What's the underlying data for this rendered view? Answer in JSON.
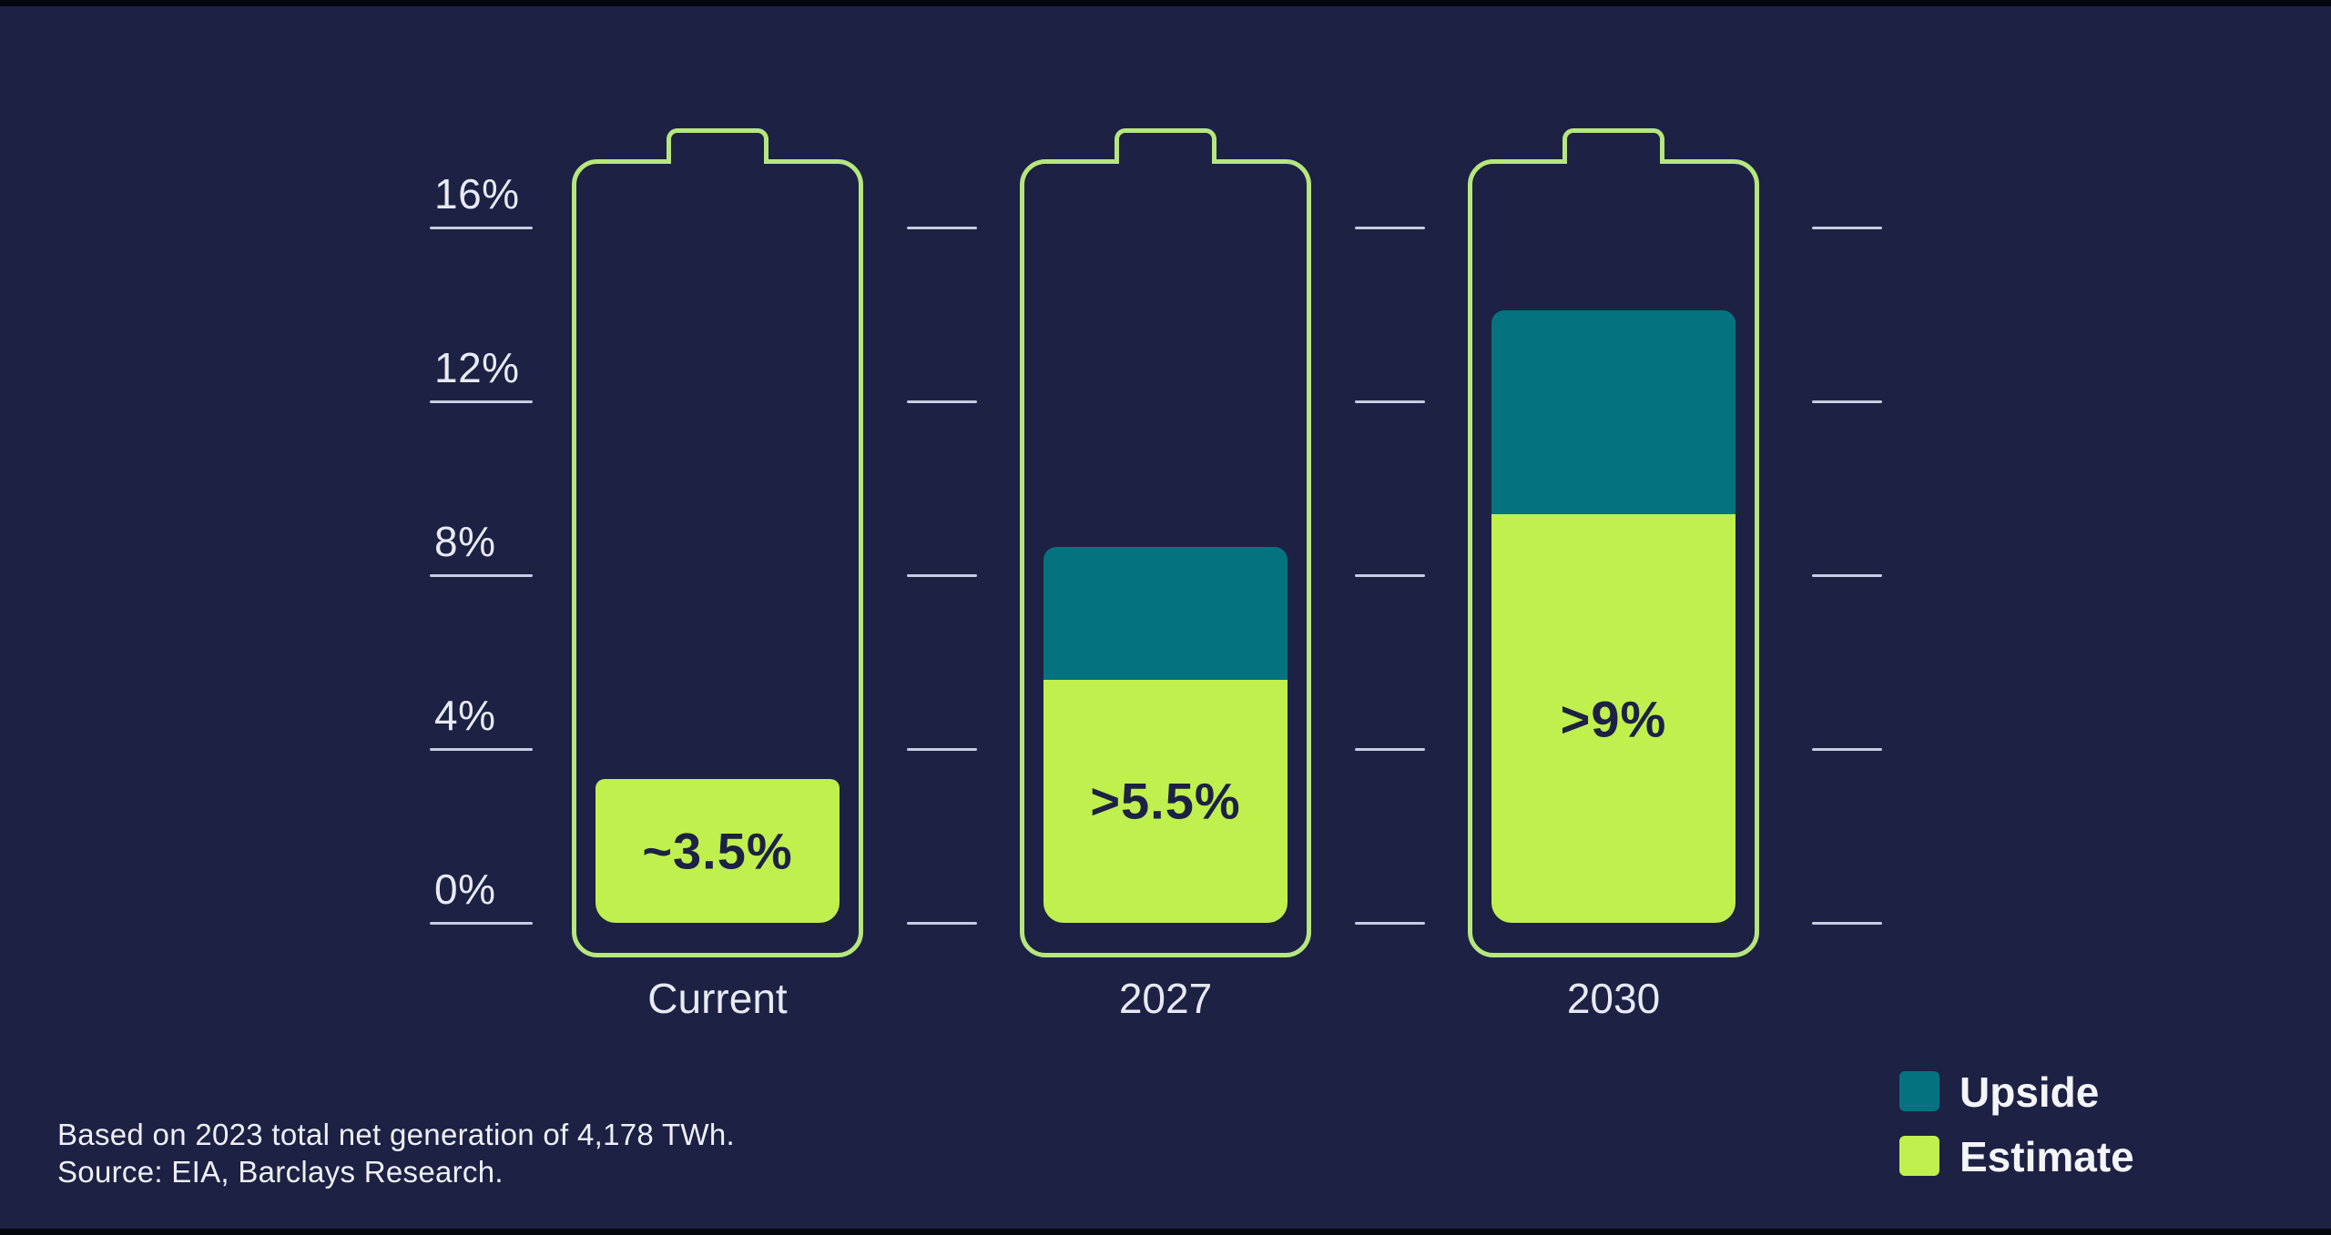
{
  "background": {
    "canvas": "#1d2144",
    "edge": "#05070e"
  },
  "colors": {
    "estimate": "#bff04e",
    "upside": "#04737f",
    "outline": "#b6e77d",
    "tick": "#c7cde0",
    "axis_text": "#e8eaf4",
    "value_text": "#1d2144",
    "legend_text": "#f4f5f8"
  },
  "chart_data": {
    "type": "bar",
    "subtype": "stacked battery-gauge chart of data-center share of US power generation",
    "categories": [
      "Current",
      "2027",
      "2030"
    ],
    "series": [
      {
        "name": "Estimate",
        "color_key": "estimate",
        "labels": [
          "~3.5%",
          ">5.5%",
          ">9%"
        ],
        "values_pct": [
          3.3,
          5.6,
          9.4
        ]
      },
      {
        "name": "Upside",
        "color_key": "upside",
        "labels": [
          "",
          "",
          ""
        ],
        "values_pct": [
          0,
          3.05,
          4.7
        ]
      }
    ],
    "y_ticks": [
      {
        "label": "16%",
        "value": 16
      },
      {
        "label": "12%",
        "value": 12
      },
      {
        "label": "8%",
        "value": 8
      },
      {
        "label": "4%",
        "value": 4
      },
      {
        "label": "0%",
        "value": 0
      }
    ],
    "ylim": [
      0,
      16
    ],
    "grid": "short dashes at tick levels between bars",
    "legend_position": "bottom-right",
    "legend": [
      {
        "label": "Upside",
        "color_key": "upside"
      },
      {
        "label": "Estimate",
        "color_key": "estimate"
      }
    ]
  },
  "footer": {
    "line1": "Based on 2023 total net generation of 4,178 TWh.",
    "line2": "Source: EIA, Barclays Research."
  }
}
